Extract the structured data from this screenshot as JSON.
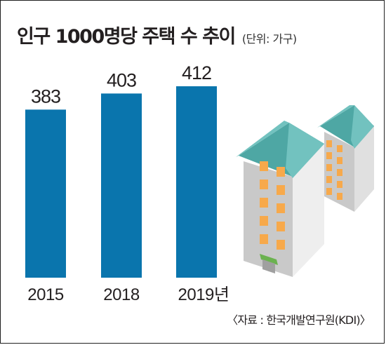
{
  "title": "인구 1000명당 주택 수 추이",
  "unit": "(단위: 가구)",
  "source": "〈자료 : 한국개발연구원(KDI)〉",
  "colors": {
    "bar": "#0a75ad",
    "building_wall": "#f1f1f1",
    "building_side": "#c9c9c9",
    "roof_light": "#72c2bf",
    "roof_dark": "#4ea7a4",
    "window": "#f7a94b",
    "door_accent": "#6bb24f"
  },
  "icons": [
    "apartment-building-icon"
  ],
  "chart_data": {
    "type": "bar",
    "categories": [
      "2015",
      "2018",
      "2019년"
    ],
    "values": [
      383,
      403,
      412
    ],
    "title": "인구 1000명당 주택 수 추이",
    "ylabel": "",
    "xlabel": "",
    "grid": false,
    "legend": "none"
  }
}
